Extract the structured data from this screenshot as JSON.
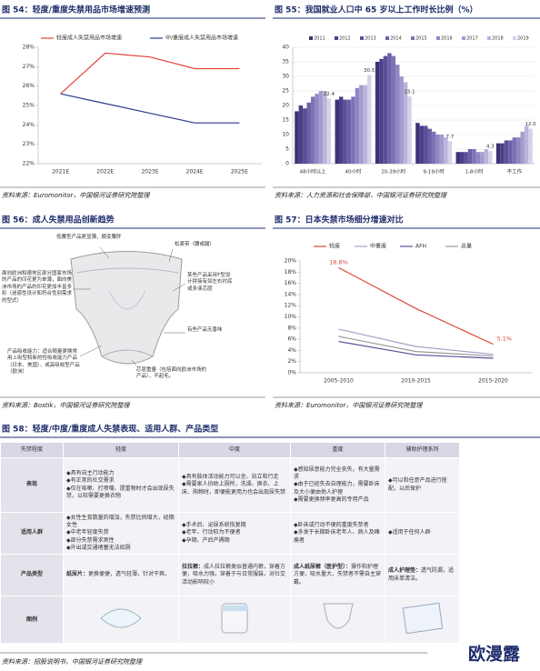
{
  "chart_data": [
    {
      "type": "line",
      "title": "图 54：轻度/重度失禁用品市场增速预测",
      "categories": [
        "2021E",
        "2022E",
        "2023E",
        "2024E",
        "2025E"
      ],
      "series": [
        {
          "name": "轻度成人失禁用品市场增速",
          "color": "#e0463c",
          "values": [
            25.6,
            27.7,
            27.5,
            26.9,
            26.9
          ]
        },
        {
          "name": "中/重度成人失禁用品市场增速",
          "color": "#2b3a8c",
          "values": [
            25.6,
            25.1,
            24.6,
            24.1,
            24.1
          ]
        }
      ],
      "ylim": [
        22,
        28
      ],
      "yticks": [
        {
          "value": 22,
          "label": "22%"
        },
        {
          "value": 23,
          "label": "23%"
        },
        {
          "value": 24,
          "label": "24%"
        },
        {
          "value": 25,
          "label": "25%"
        },
        {
          "value": 26,
          "label": "26%"
        },
        {
          "value": 27,
          "label": "27%"
        },
        {
          "value": 28,
          "label": "28%"
        }
      ],
      "grid": false,
      "source": "资料来源：Euromonitor，中国银河证券研究院整理"
    },
    {
      "type": "bar",
      "title": "图 55：我国就业人口中 65 岁以上工作时长比例（%）",
      "categories": [
        "48小时以上",
        "40小时",
        "20-39小时",
        "9-19小时",
        "1-8小时",
        "不工作"
      ],
      "series": [
        {
          "name": "2011",
          "color": "#3b3275",
          "values": [
            18,
            22,
            35,
            14,
            4,
            7
          ]
        },
        {
          "name": "2012",
          "color": "#4a4088",
          "values": [
            20,
            23,
            36,
            13,
            4,
            7
          ]
        },
        {
          "name": "2013",
          "color": "#5a5098",
          "values": [
            19,
            22,
            37,
            13,
            4,
            8
          ]
        },
        {
          "name": "2014",
          "color": "#6a61a7",
          "values": [
            21,
            22,
            38,
            12,
            5,
            8
          ]
        },
        {
          "name": "2015",
          "color": "#7c73b5",
          "values": [
            23,
            23,
            37,
            11,
            5,
            9
          ]
        },
        {
          "name": "2016",
          "color": "#8f87c2",
          "values": [
            24,
            26,
            34,
            10,
            4,
            9
          ]
        },
        {
          "name": "2017",
          "color": "#a39ccf",
          "values": [
            25,
            27,
            30,
            10,
            4,
            11
          ]
        },
        {
          "name": "2018",
          "color": "#bab4dc",
          "values": [
            25,
            27,
            28,
            9,
            5,
            13
          ]
        },
        {
          "name": "2019",
          "color": "#d6d2ea",
          "values": [
            22.4,
            30.5,
            23.1,
            7.7,
            4.3,
            12
          ],
          "value_labels": [
            "22.4",
            "30.5",
            "23.1",
            "7.7",
            "4.3",
            "12.0"
          ]
        }
      ],
      "ylim": [
        0,
        40
      ],
      "yticks": [
        0,
        5,
        10,
        15,
        20,
        25,
        30,
        35,
        40
      ],
      "grid": true,
      "source": "资料来源：人力资源和社会保障部，中国银河证券研究院整理"
    },
    {
      "type": "line",
      "title": "图 57：日本失禁市场细分增速对比",
      "categories": [
        "2005-2010",
        "2010-2015",
        "2015-2020"
      ],
      "series": [
        {
          "name": "轻度",
          "color": "#e0463c",
          "values": [
            18.8,
            11.5,
            5.1
          ],
          "value_labels": [
            "18.8%",
            null,
            "5.1%"
          ]
        },
        {
          "name": "中重度",
          "color": "#a6a0c8",
          "values": [
            7.8,
            4.7,
            3.3
          ]
        },
        {
          "name": "AFH",
          "color": "#5b4f96",
          "values": [
            5.6,
            3.2,
            2.6
          ]
        },
        {
          "name": "总量",
          "color": "#9a9a9a",
          "values": [
            6.5,
            3.8,
            3
          ]
        }
      ],
      "ylim": [
        0,
        20
      ],
      "yticks": [
        {
          "value": 0,
          "label": "0%"
        },
        {
          "value": 2,
          "label": "2%"
        },
        {
          "value": 4,
          "label": "4%"
        },
        {
          "value": 6,
          "label": "6%"
        },
        {
          "value": 8,
          "label": "8%"
        },
        {
          "value": 10,
          "label": "10%"
        },
        {
          "value": 12,
          "label": "12%"
        },
        {
          "value": 14,
          "label": "14%"
        },
        {
          "value": 16,
          "label": "16%"
        },
        {
          "value": 18,
          "label": "18%"
        },
        {
          "value": 20,
          "label": "20%"
        }
      ],
      "grid": false,
      "source": "资料来源：Euromonitor，中国银河证券研究院整理"
    }
  ],
  "figure_56": {
    "title": "图 56：成人失禁用品创新趋势",
    "labels": [
      "低腰型产品更显薄，顺变腰肝",
      "松紧带（腰或腿）",
      "面向欧洲和德地区部分国家市场的产品的印花更为单薄，面向美洲市场的产品的印花更加丰富多彩（迷惑性设计和符合性别需求的型式）",
      "某些产品采用T型设计拼接有如左右衬底或多液芯层",
      "有些产品无香味",
      "产品吸收能力：适合随量更换常用上吸型和新的性吸收能力产品（日本、美国）、或高吸收型产品（欧洲）",
      "芯层重量（包括面向欧洲市场的产品），不起毛。"
    ],
    "source": "资料来源：Bostik，中国银河证券研究院整理"
  },
  "table": {
    "title": "图 58：轻度/中度/重度成人失禁表现、适用人群、产品类型",
    "header": [
      "失禁程度",
      "轻度",
      "中度",
      "重度",
      "辅助护理系列"
    ],
    "rows": [
      [
        "表现",
        [
          "◆具有自主行动能力",
          "◆有正常的社交需求",
          "◆仅在咳嗽、打喷嚏、提重物时才会出现尿失禁，以较需要更换衣物"
        ],
        [
          "◆具有肢体活动能力可以坐、站立和行走",
          "◆需要家人协助上厕所，洗澡、换衣、上床、购物时，即便能更用力也会出现尿失禁"
        ],
        [
          "◆感知尿意能力完全丧失，有大量需求",
          "◆由于已经失去自理能力，需要卧床及大小便由他人护理",
          "◆需要更换频率更高的专用产品"
        ],
        [
          "◆可以和任意产品进行搭配，以后保护"
        ]
      ],
      [
        "适用人群",
        [
          "◆女性生育数量的增加，失禁比例增大，经期女性",
          "◆中老年轻度失禁",
          "◆部分失禁需求男性",
          "◆外出或交通堵塞无法如厕"
        ],
        [
          "◆手术后、泌尿系统恢复期",
          "◆老年、行动较为不便者",
          "◆孕期、产后产褥期"
        ],
        [
          "◆卧床或行动不便的重度失禁者",
          "◆多发于长期卧床老年人、病人及瘫痪者"
        ],
        [
          "◆适用于任何人群"
        ]
      ],
      [
        "产品类型",
        {
          "name": "纸尿片：",
          "desc": "更换便捷，透气轻薄，针对干爽。"
        },
        {
          "name": "拉拉裤：",
          "desc": "成人拉拉裤类似普通内裤，穿着方便，吸水力强，穿着于与日常服装，对社交活动影响较小"
        },
        {
          "name": "成人纸尿裤（医护型）：",
          "desc": "操作和护理方便，吸水量大，失禁者不需自主穿戴。"
        },
        {
          "name": "成人护理垫：",
          "desc": "透气防漏，适用床单清洁。"
        }
      ],
      [
        "图例"
      ]
    ],
    "source": "资料来源：招股说明书，中国银河证券研究院整理"
  },
  "watermark": "欧漫露"
}
